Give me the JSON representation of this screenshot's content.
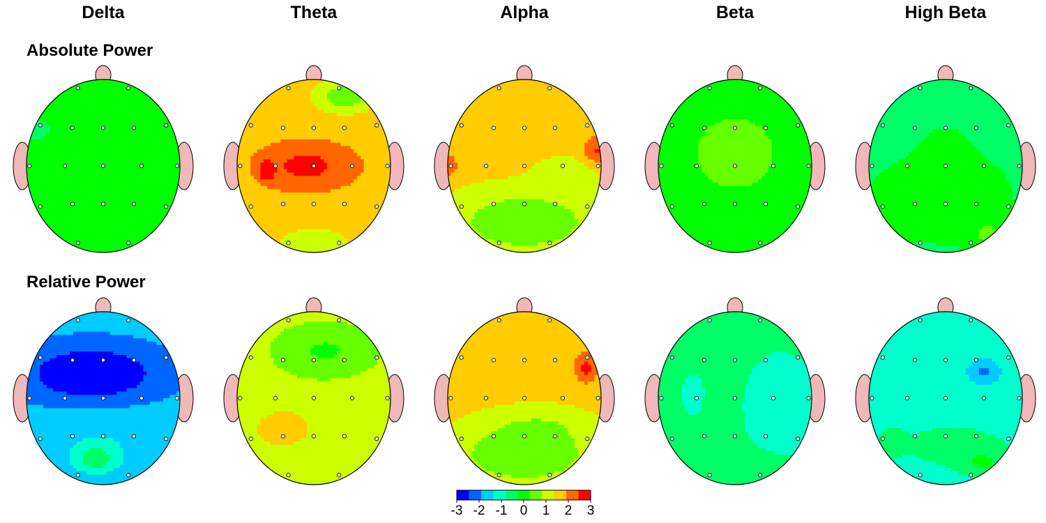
{
  "bands": [
    "Delta",
    "Theta",
    "Alpha",
    "Beta",
    "High Beta"
  ],
  "rows": [
    "Absolute Power",
    "Relative Power"
  ],
  "colorbar": {
    "colors": [
      "#0000ff",
      "#0066ff",
      "#00ccff",
      "#00ffcc",
      "#00ff66",
      "#00ff00",
      "#66ff00",
      "#ccff00",
      "#ffcc00",
      "#ff6600",
      "#ff0000"
    ],
    "ticks": [
      "-3",
      "-2",
      "-1",
      "0",
      "1",
      "2",
      "3"
    ],
    "range": [
      -3,
      3
    ]
  },
  "head_colors": {
    "ear_nose": "#f0b8b8",
    "outline": "#000000",
    "electrode": "#ffffff"
  },
  "maps": [
    [
      {
        "band": "Delta",
        "base": 0.0,
        "blobs": [
          [
            -0.88,
            -0.42,
            0.35,
            0.25,
            -0.35
          ]
        ]
      },
      {
        "band": "Theta",
        "base": 1.5,
        "blobs": [
          [
            -0.1,
            0.0,
            0.75,
            0.32,
            1.1
          ],
          [
            -0.62,
            0.05,
            0.08,
            0.1,
            1.6
          ],
          [
            0.4,
            -0.8,
            0.3,
            0.15,
            -1.2
          ],
          [
            0.0,
            0.9,
            0.5,
            0.2,
            -0.3
          ]
        ]
      },
      {
        "band": "Alpha",
        "base": 1.5,
        "blobs": [
          [
            0.0,
            0.65,
            0.9,
            0.35,
            -1.2
          ],
          [
            0.6,
            0.05,
            0.4,
            0.15,
            -0.5
          ],
          [
            0.95,
            -0.18,
            0.2,
            0.18,
            1.0
          ],
          [
            -1.0,
            0.0,
            0.15,
            0.15,
            0.8
          ]
        ]
      },
      {
        "band": "Beta",
        "base": 0.0,
        "blobs": [
          [
            0.0,
            -0.15,
            0.55,
            0.45,
            0.6
          ]
        ]
      },
      {
        "band": "High Beta",
        "base": -0.3,
        "blobs": [
          [
            0.0,
            0.2,
            0.3,
            0.4,
            0.35
          ],
          [
            -0.4,
            0.4,
            0.4,
            0.3,
            0.3
          ],
          [
            0.35,
            0.4,
            0.35,
            0.3,
            0.3
          ],
          [
            0.55,
            0.8,
            0.2,
            0.15,
            0.8
          ]
        ]
      }
    ],
    [
      {
        "band": "Delta",
        "base": -1.8,
        "blobs": [
          [
            -0.15,
            -0.28,
            0.8,
            0.3,
            -1.4
          ],
          [
            -0.1,
            0.7,
            0.25,
            0.15,
            1.1
          ],
          [
            0.0,
            0.55,
            0.8,
            0.4,
            0.4
          ]
        ]
      },
      {
        "band": "Theta",
        "base": 1.0,
        "blobs": [
          [
            0.15,
            -0.55,
            0.6,
            0.28,
            -0.8
          ],
          [
            -0.4,
            0.35,
            0.35,
            0.2,
            0.9
          ]
        ]
      },
      {
        "band": "Alpha",
        "base": 1.5,
        "blobs": [
          [
            0.0,
            0.65,
            0.9,
            0.35,
            -1.2
          ],
          [
            0.8,
            -0.35,
            0.15,
            0.18,
            1.1
          ],
          [
            0.2,
            0.3,
            0.6,
            0.2,
            -0.4
          ]
        ]
      },
      {
        "band": "Beta",
        "base": -0.75,
        "blobs": [
          [
            0.6,
            0.1,
            0.35,
            0.45,
            -0.5
          ],
          [
            -0.55,
            -0.05,
            0.1,
            0.18,
            -0.5
          ],
          [
            0.15,
            0.85,
            0.45,
            0.18,
            0.4
          ],
          [
            -0.6,
            -0.6,
            0.3,
            0.18,
            0.4
          ]
        ]
      },
      {
        "band": "High Beta",
        "base": -1.1,
        "blobs": [
          [
            0.5,
            -0.3,
            0.2,
            0.14,
            -0.9
          ],
          [
            0.1,
            0.55,
            0.9,
            0.3,
            0.45
          ],
          [
            0.5,
            0.75,
            0.3,
            0.15,
            0.7
          ],
          [
            -0.7,
            0.5,
            0.15,
            0.15,
            0.6
          ]
        ]
      }
    ]
  ]
}
